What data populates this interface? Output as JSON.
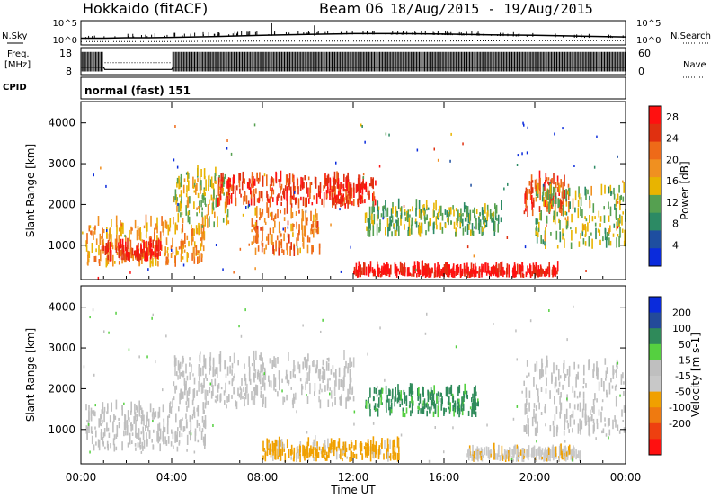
{
  "header": {
    "station": "Hokkaido (fitACF)",
    "beam": "Beam 06",
    "dates": "18/Aug/2015 - 19/Aug/2015"
  },
  "side_labels": {
    "nsky": "N.Sky",
    "freq_line1": "Freq.",
    "freq_line2": "[MHz]",
    "cpid": "CPID",
    "nsearch": "N.Search",
    "nave": "Nave"
  },
  "cpid_text": "normal (fast) 151",
  "chart_data": [
    {
      "type": "line",
      "panel": "noise",
      "left_ticks": [
        "10^5",
        "10^0"
      ],
      "right_ticks": [
        "10^5",
        "10^0"
      ],
      "series": [
        {
          "name": "N.Sky",
          "x": [
            0,
            1,
            2,
            3,
            4,
            6,
            8,
            10,
            12,
            14,
            16,
            18,
            20,
            22,
            24
          ],
          "y": [
            1.2,
            1.2,
            1.3,
            1.3,
            1.4,
            1.6,
            1.9,
            2.1,
            2.3,
            2.3,
            2.2,
            2.0,
            1.9,
            1.7,
            1.5
          ]
        },
        {
          "name": "N.Search",
          "x": [
            0,
            4,
            8,
            12,
            16,
            20,
            24
          ],
          "y": [
            0.4,
            0.4,
            0.5,
            0.5,
            0.5,
            0.6,
            0.6
          ]
        }
      ]
    },
    {
      "type": "line",
      "panel": "frequency",
      "left_ticks": [
        "18",
        "8"
      ],
      "right_ticks": [
        "60",
        "0"
      ],
      "series": [
        {
          "name": "Freq.",
          "x": [
            0,
            0.1,
            1.0,
            1.05,
            4.0,
            4.05,
            24
          ],
          "y": [
            10.5,
            10.5,
            10.5,
            9.5,
            9.5,
            10.5,
            10.5
          ]
        },
        {
          "name": "Nave",
          "x": [
            0,
            24
          ],
          "y": [
            30,
            30
          ]
        }
      ]
    },
    {
      "type": "heatmap",
      "panel": "power",
      "xlabel": "",
      "ylabel": "Slant Range [km]",
      "xlim": [
        0,
        24
      ],
      "ylim": [
        180,
        4500
      ],
      "y_ticks": [
        1000,
        2000,
        3000,
        4000
      ],
      "colorbar": {
        "label": "Power [dB]",
        "ticks": [
          4,
          8,
          12,
          16,
          20,
          24,
          28
        ],
        "range": [
          0,
          30
        ]
      },
      "regions": [
        {
          "x": [
            0.2,
            5.5
          ],
          "y": [
            450,
            1500
          ],
          "value": 18
        },
        {
          "x": [
            0.8,
            3.5
          ],
          "y": [
            600,
            950
          ],
          "value": 27
        },
        {
          "x": [
            4.0,
            6.5
          ],
          "y": [
            1400,
            2700
          ],
          "value": 14
        },
        {
          "x": [
            6.0,
            12.0
          ],
          "y": [
            1900,
            2600
          ],
          "value": 25
        },
        {
          "x": [
            7.5,
            10.5
          ],
          "y": [
            700,
            1800
          ],
          "value": 20
        },
        {
          "x": [
            11.0,
            13.0
          ],
          "y": [
            1900,
            2500
          ],
          "value": 26
        },
        {
          "x": [
            12.5,
            18.5
          ],
          "y": [
            1200,
            1900
          ],
          "value": 12
        },
        {
          "x": [
            19.5,
            21.5
          ],
          "y": [
            1700,
            2600
          ],
          "value": 24
        },
        {
          "x": [
            20.0,
            24.0
          ],
          "y": [
            900,
            2300
          ],
          "value": 13
        },
        {
          "x": [
            12.0,
            21.0
          ],
          "y": [
            200,
            350
          ],
          "value": 28
        }
      ]
    },
    {
      "type": "heatmap",
      "panel": "velocity",
      "xlabel": "Time UT",
      "ylabel": "Slant Range [km]",
      "xlim": [
        0,
        24
      ],
      "ylim": [
        180,
        4500
      ],
      "y_ticks": [
        1000,
        2000,
        3000,
        4000
      ],
      "x_ticks": [
        "00:00",
        "04:00",
        "08:00",
        "12:00",
        "16:00",
        "20:00",
        "00:00"
      ],
      "colorbar": {
        "label": "Velocity [m s-1]",
        "ticks": [
          200,
          100,
          50,
          15,
          -15,
          -50,
          -100,
          -200
        ]
      },
      "regions": [
        {
          "x": [
            0.2,
            5.5
          ],
          "y": [
            450,
            1500
          ],
          "value": 0
        },
        {
          "x": [
            4.0,
            12.0
          ],
          "y": [
            1500,
            2700
          ],
          "value": -5
        },
        {
          "x": [
            12.5,
            17.5
          ],
          "y": [
            1300,
            1900
          ],
          "value": 60
        },
        {
          "x": [
            19.5,
            24.0
          ],
          "y": [
            800,
            2600
          ],
          "value": 0
        },
        {
          "x": [
            8.0,
            14.0
          ],
          "y": [
            200,
            600
          ],
          "value": -60
        },
        {
          "x": [
            17.0,
            22.0
          ],
          "y": [
            200,
            400
          ],
          "value": -40
        }
      ]
    }
  ],
  "time_axis": {
    "ticks": [
      "00:00",
      "04:00",
      "08:00",
      "12:00",
      "16:00",
      "20:00",
      "00:00"
    ],
    "label": "Time UT"
  },
  "power_colors": [
    "#0a2bdc",
    "#1e4ea0",
    "#2c8a64",
    "#55a050",
    "#e8b400",
    "#f09020",
    "#ee6a18",
    "#e03010",
    "#ff1010"
  ],
  "velocity_colors": [
    "#0a2bdc",
    "#234a9a",
    "#2f8a5a",
    "#55d040",
    "#bfbfbf",
    "#c8c8c8",
    "#f0a000",
    "#ef7a10",
    "#ee4010",
    "#ff1010"
  ]
}
